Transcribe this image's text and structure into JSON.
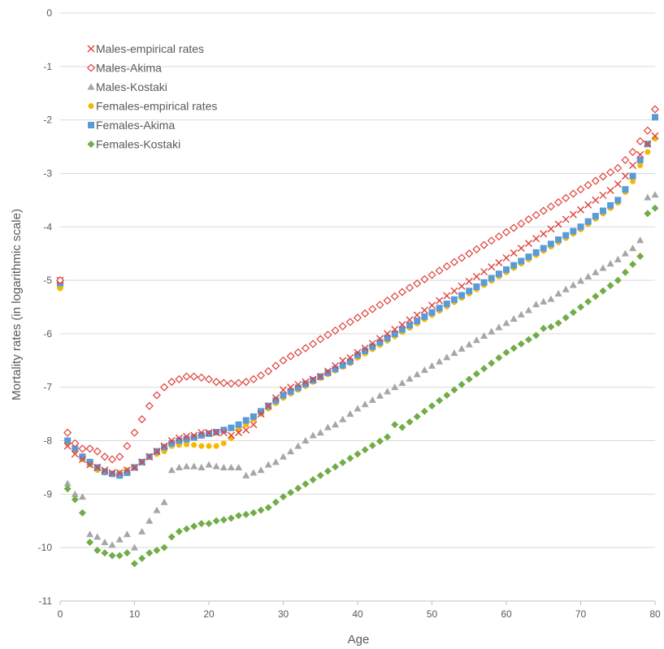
{
  "chart_data": {
    "type": "scatter",
    "xlabel": "Age",
    "ylabel": "Mortality rates (in logarithmic scale)",
    "xlim": [
      0,
      80
    ],
    "ylim": [
      -11,
      0
    ],
    "xticks": [
      0,
      10,
      20,
      30,
      40,
      50,
      60,
      70,
      80
    ],
    "yticks": [
      0,
      -1,
      -2,
      -3,
      -4,
      -5,
      -6,
      -7,
      -8,
      -9,
      -10,
      -11
    ],
    "grid": "horizontal",
    "legend_position": "top-left",
    "x": [
      0,
      1,
      2,
      3,
      4,
      5,
      6,
      7,
      8,
      9,
      10,
      11,
      12,
      13,
      14,
      15,
      16,
      17,
      18,
      19,
      20,
      21,
      22,
      23,
      24,
      25,
      26,
      27,
      28,
      29,
      30,
      31,
      32,
      33,
      34,
      35,
      36,
      37,
      38,
      39,
      40,
      41,
      42,
      43,
      44,
      45,
      46,
      47,
      48,
      49,
      50,
      51,
      52,
      53,
      54,
      55,
      56,
      57,
      58,
      59,
      60,
      61,
      62,
      63,
      64,
      65,
      66,
      67,
      68,
      69,
      70,
      71,
      72,
      73,
      74,
      75,
      76,
      77,
      78,
      79,
      80
    ],
    "series": [
      {
        "name": "Males-empirical rates",
        "marker": "x",
        "color": "#e0403a",
        "values": [
          -5.0,
          -8.1,
          -8.25,
          -8.35,
          -8.45,
          -8.5,
          -8.55,
          -8.6,
          -8.6,
          -8.55,
          -8.5,
          -8.4,
          -8.3,
          -8.2,
          -8.1,
          -8.0,
          -7.95,
          -7.92,
          -7.9,
          -7.85,
          -7.85,
          -7.85,
          -7.85,
          -7.9,
          -7.85,
          -7.8,
          -7.7,
          -7.5,
          -7.35,
          -7.2,
          -7.05,
          -7.0,
          -6.95,
          -6.9,
          -6.85,
          -6.8,
          -6.7,
          -6.6,
          -6.5,
          -6.45,
          -6.35,
          -6.27,
          -6.18,
          -6.09,
          -6.0,
          -5.92,
          -5.83,
          -5.74,
          -5.65,
          -5.56,
          -5.47,
          -5.38,
          -5.29,
          -5.2,
          -5.11,
          -5.02,
          -4.93,
          -4.84,
          -4.75,
          -4.67,
          -4.58,
          -4.49,
          -4.4,
          -4.31,
          -4.22,
          -4.13,
          -4.04,
          -3.95,
          -3.86,
          -3.77,
          -3.68,
          -3.59,
          -3.5,
          -3.41,
          -3.32,
          -3.2,
          -3.05,
          -2.85,
          -2.65,
          -2.45,
          -2.3
        ]
      },
      {
        "name": "Males-Akima",
        "marker": "diamond-open",
        "color": "#e0403a",
        "values": [
          -5.0,
          -7.85,
          -8.05,
          -8.15,
          -8.15,
          -8.2,
          -8.3,
          -8.35,
          -8.3,
          -8.1,
          -7.85,
          -7.6,
          -7.35,
          -7.15,
          -7.0,
          -6.9,
          -6.85,
          -6.8,
          -6.8,
          -6.82,
          -6.85,
          -6.9,
          -6.92,
          -6.93,
          -6.92,
          -6.9,
          -6.85,
          -6.78,
          -6.7,
          -6.6,
          -6.5,
          -6.42,
          -6.35,
          -6.27,
          -6.19,
          -6.1,
          -6.02,
          -5.94,
          -5.86,
          -5.78,
          -5.7,
          -5.62,
          -5.54,
          -5.46,
          -5.38,
          -5.3,
          -5.22,
          -5.14,
          -5.06,
          -4.98,
          -4.9,
          -4.82,
          -4.74,
          -4.66,
          -4.58,
          -4.5,
          -4.42,
          -4.34,
          -4.26,
          -4.18,
          -4.1,
          -4.02,
          -3.94,
          -3.86,
          -3.78,
          -3.7,
          -3.62,
          -3.54,
          -3.46,
          -3.38,
          -3.3,
          -3.22,
          -3.14,
          -3.06,
          -2.98,
          -2.9,
          -2.75,
          -2.6,
          -2.4,
          -2.2,
          -1.8
        ]
      },
      {
        "name": "Males-Kostaki",
        "marker": "triangle",
        "color": "#a6a6a6",
        "values": [
          -5.1,
          -8.8,
          -9.0,
          -9.05,
          -9.75,
          -9.8,
          -9.9,
          -9.95,
          -9.85,
          -9.75,
          -10.0,
          -9.7,
          -9.5,
          -9.3,
          -9.15,
          -8.55,
          -8.5,
          -8.48,
          -8.48,
          -8.5,
          -8.45,
          -8.48,
          -8.5,
          -8.5,
          -8.5,
          -8.65,
          -8.6,
          -8.55,
          -8.45,
          -8.4,
          -8.3,
          -8.2,
          -8.1,
          -8.0,
          -7.9,
          -7.85,
          -7.75,
          -7.7,
          -7.6,
          -7.5,
          -7.4,
          -7.32,
          -7.24,
          -7.16,
          -7.08,
          -7.0,
          -6.92,
          -6.84,
          -6.76,
          -6.68,
          -6.6,
          -6.52,
          -6.44,
          -6.36,
          -6.28,
          -6.2,
          -6.12,
          -6.04,
          -5.96,
          -5.88,
          -5.8,
          -5.72,
          -5.64,
          -5.56,
          -5.45,
          -5.4,
          -5.35,
          -5.25,
          -5.17,
          -5.09,
          -5.01,
          -4.93,
          -4.85,
          -4.77,
          -4.69,
          -4.61,
          -4.5,
          -4.4,
          -4.25,
          -3.45,
          -3.4
        ]
      },
      {
        "name": "Females-empirical rates",
        "marker": "circle",
        "color": "#f5b800",
        "values": [
          -5.15,
          -8.05,
          -8.2,
          -8.35,
          -8.45,
          -8.55,
          -8.6,
          -8.62,
          -8.6,
          -8.55,
          -8.5,
          -8.4,
          -8.3,
          -8.25,
          -8.2,
          -8.1,
          -8.08,
          -8.07,
          -8.08,
          -8.1,
          -8.1,
          -8.1,
          -8.05,
          -7.95,
          -7.8,
          -7.7,
          -7.6,
          -7.5,
          -7.4,
          -7.3,
          -7.2,
          -7.12,
          -7.05,
          -6.98,
          -6.9,
          -6.83,
          -6.76,
          -6.69,
          -6.62,
          -6.55,
          -6.45,
          -6.37,
          -6.29,
          -6.21,
          -6.13,
          -6.05,
          -5.97,
          -5.89,
          -5.81,
          -5.73,
          -5.65,
          -5.57,
          -5.49,
          -5.41,
          -5.33,
          -5.25,
          -5.17,
          -5.09,
          -5.01,
          -4.93,
          -4.85,
          -4.77,
          -4.69,
          -4.61,
          -4.53,
          -4.45,
          -4.37,
          -4.29,
          -4.21,
          -4.13,
          -4.05,
          -3.95,
          -3.85,
          -3.75,
          -3.65,
          -3.55,
          -3.35,
          -3.15,
          -2.85,
          -2.6,
          -2.35
        ]
      },
      {
        "name": "Females-Akima",
        "marker": "square",
        "color": "#5b9bd5",
        "values": [
          -5.05,
          -8.0,
          -8.15,
          -8.3,
          -8.4,
          -8.5,
          -8.58,
          -8.62,
          -8.65,
          -8.6,
          -8.5,
          -8.4,
          -8.3,
          -8.2,
          -8.12,
          -8.05,
          -8.0,
          -7.97,
          -7.94,
          -7.9,
          -7.87,
          -7.84,
          -7.8,
          -7.76,
          -7.7,
          -7.62,
          -7.55,
          -7.45,
          -7.35,
          -7.25,
          -7.15,
          -7.08,
          -7.01,
          -6.94,
          -6.87,
          -6.8,
          -6.73,
          -6.66,
          -6.59,
          -6.52,
          -6.4,
          -6.32,
          -6.24,
          -6.16,
          -6.08,
          -6.0,
          -5.92,
          -5.84,
          -5.76,
          -5.68,
          -5.6,
          -5.52,
          -5.44,
          -5.36,
          -5.28,
          -5.2,
          -5.12,
          -5.04,
          -4.96,
          -4.88,
          -4.8,
          -4.72,
          -4.64,
          -4.56,
          -4.48,
          -4.4,
          -4.32,
          -4.24,
          -4.16,
          -4.08,
          -4.0,
          -3.9,
          -3.8,
          -3.7,
          -3.6,
          -3.5,
          -3.3,
          -3.05,
          -2.75,
          -2.45,
          -1.95
        ]
      },
      {
        "name": "Females-Kostaki",
        "marker": "diamond",
        "color": "#70ad47",
        "values": [
          -5.1,
          -8.9,
          -9.1,
          -9.35,
          -9.9,
          -10.05,
          -10.1,
          -10.15,
          -10.15,
          -10.1,
          -10.3,
          -10.2,
          -10.1,
          -10.05,
          -10.0,
          -9.8,
          -9.7,
          -9.65,
          -9.6,
          -9.55,
          -9.55,
          -9.5,
          -9.48,
          -9.45,
          -9.4,
          -9.38,
          -9.35,
          -9.3,
          -9.25,
          -9.15,
          -9.05,
          -8.97,
          -8.89,
          -8.81,
          -8.73,
          -8.65,
          -8.57,
          -8.49,
          -8.41,
          -8.33,
          -8.25,
          -8.17,
          -8.09,
          -8.01,
          -7.93,
          -7.7,
          -7.75,
          -7.65,
          -7.55,
          -7.45,
          -7.35,
          -7.25,
          -7.15,
          -7.05,
          -6.95,
          -6.85,
          -6.75,
          -6.65,
          -6.55,
          -6.45,
          -6.35,
          -6.27,
          -6.19,
          -6.11,
          -6.03,
          -5.9,
          -5.87,
          -5.8,
          -5.7,
          -5.6,
          -5.5,
          -5.4,
          -5.3,
          -5.2,
          -5.1,
          -5.0,
          -4.85,
          -4.7,
          -4.55,
          -3.75,
          -3.65
        ]
      }
    ]
  }
}
